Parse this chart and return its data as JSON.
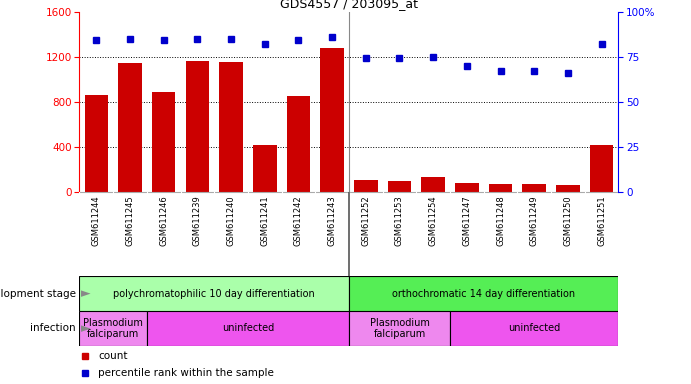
{
  "title": "GDS4557 / 203095_at",
  "samples": [
    "GSM611244",
    "GSM611245",
    "GSM611246",
    "GSM611239",
    "GSM611240",
    "GSM611241",
    "GSM611242",
    "GSM611243",
    "GSM611252",
    "GSM611253",
    "GSM611254",
    "GSM611247",
    "GSM611248",
    "GSM611249",
    "GSM611250",
    "GSM611251"
  ],
  "counts": [
    860,
    1140,
    890,
    1165,
    1150,
    420,
    850,
    1280,
    110,
    100,
    130,
    80,
    75,
    70,
    60,
    420
  ],
  "percentiles": [
    84,
    85,
    84,
    85,
    85,
    82,
    84,
    86,
    74,
    74,
    75,
    70,
    67,
    67,
    66,
    82
  ],
  "ylim_left": [
    0,
    1600
  ],
  "ylim_right": [
    0,
    100
  ],
  "yticks_left": [
    0,
    400,
    800,
    1200,
    1600
  ],
  "yticks_right": [
    0,
    25,
    50,
    75,
    100
  ],
  "bar_color": "#cc0000",
  "dot_color": "#0000cc",
  "background_color": "#ffffff",
  "xlabel_bg": "#d8d8d8",
  "dev_stage_groups": [
    {
      "label": "polychromatophilic 10 day differentiation",
      "start": 0,
      "end": 8,
      "color": "#aaffaa"
    },
    {
      "label": "orthochromatic 14 day differentiation",
      "start": 8,
      "end": 16,
      "color": "#55ee55"
    }
  ],
  "infection_groups": [
    {
      "label": "Plasmodium\nfalciparum",
      "start": 0,
      "end": 2,
      "color": "#ee88ee"
    },
    {
      "label": "uninfected",
      "start": 2,
      "end": 8,
      "color": "#ee55ee"
    },
    {
      "label": "Plasmodium\nfalciparum",
      "start": 8,
      "end": 11,
      "color": "#ee88ee"
    },
    {
      "label": "uninfected",
      "start": 11,
      "end": 16,
      "color": "#ee55ee"
    }
  ],
  "legend_count_color": "#cc0000",
  "legend_pct_color": "#0000cc",
  "dev_stage_label": "development stage",
  "infection_label": "infection",
  "group_separator": 7.5
}
